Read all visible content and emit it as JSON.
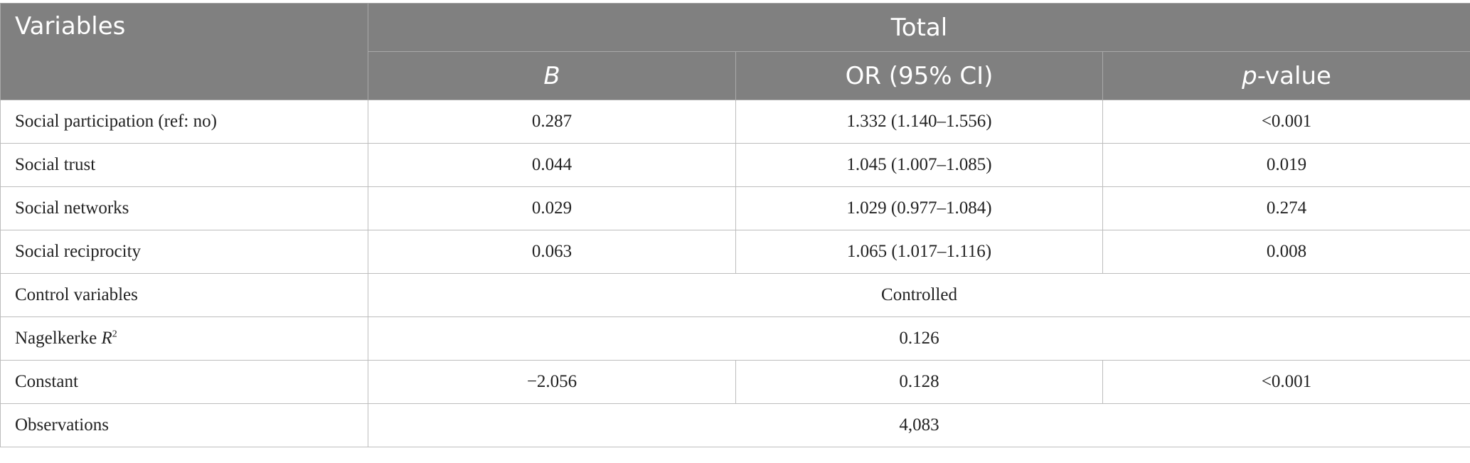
{
  "header": {
    "variables": "Variables",
    "total": "Total",
    "b": "B",
    "or_ci": "OR (95% CI)",
    "p_italic": "p",
    "p_rest": "-value"
  },
  "rows": [
    {
      "label": "Social participation (ref: no)",
      "b": "0.287",
      "or": "1.332 (1.140–1.556)",
      "p": "<0.001"
    },
    {
      "label": "Social trust",
      "b": "0.044",
      "or": "1.045 (1.007–1.085)",
      "p": "0.019"
    },
    {
      "label": "Social networks",
      "b": "0.029",
      "or": "1.029 (0.977–1.084)",
      "p": "0.274"
    },
    {
      "label": "Social reciprocity",
      "b": "0.063",
      "or": "1.065 (1.017–1.116)",
      "p": "0.008"
    }
  ],
  "control": {
    "label": "Control variables",
    "value": "Controlled"
  },
  "r2": {
    "label_prefix": "Nagelkerke ",
    "label_var": "R",
    "label_sup": "2",
    "value": "0.126"
  },
  "constant": {
    "label": "Constant",
    "b": "−2.056",
    "or": "0.128",
    "p": "<0.001"
  },
  "observations": {
    "label": "Observations",
    "value": "4,083"
  }
}
